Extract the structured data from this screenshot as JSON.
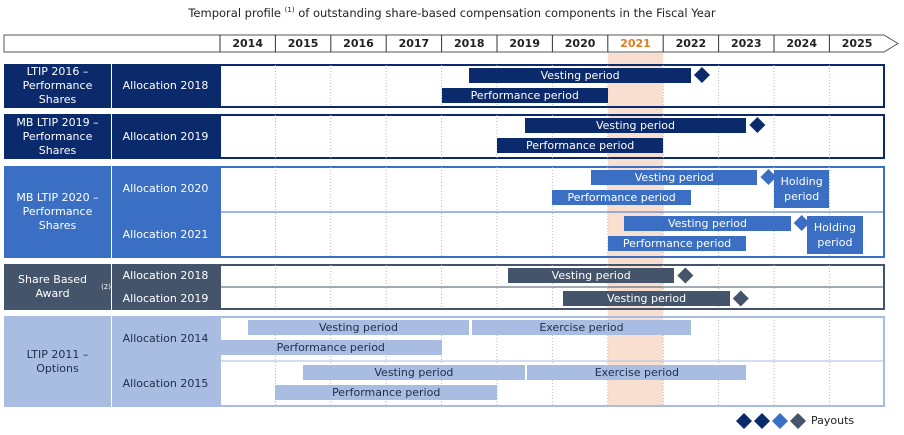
{
  "title": "Temporal profile",
  "title_note": "(1)",
  "title_rest": "of outstanding share-based compensation components in the Fiscal Year",
  "colors": {
    "navy": "#0b2a6b",
    "blue": "#3a6fc4",
    "slate": "#44546a",
    "pale": "#a9bde3",
    "highlight": "#f8dfcf"
  },
  "chart_data": {
    "type": "gantt",
    "title": "Temporal profile (1) of outstanding share-based compensation components in the Fiscal Year",
    "years": [
      "2014",
      "2015",
      "2016",
      "2017",
      "2018",
      "2019",
      "2020",
      "2021",
      "2022",
      "2023",
      "2024",
      "2025"
    ],
    "highlight_year": "2021",
    "legend": {
      "label": "Payouts",
      "position": "bottom-right"
    },
    "groups": [
      {
        "name": "LTIP 2016 – Performance Shares",
        "color": "navy",
        "rows": [
          {
            "name": "Allocation 2018",
            "bars": [
              {
                "label": "Vesting period",
                "start": 2018.5,
                "end": 2022.5
              },
              {
                "label": "Performance period",
                "start": 2018.0,
                "end": 2021.0
              }
            ],
            "payout": 2022.7
          }
        ]
      },
      {
        "name": "MB LTIP 2019 – Performance Shares",
        "color": "navy",
        "rows": [
          {
            "name": "Allocation 2019",
            "bars": [
              {
                "label": "Vesting period",
                "start": 2019.5,
                "end": 2023.5
              },
              {
                "label": "Performance period",
                "start": 2019.0,
                "end": 2022.0
              }
            ],
            "payout": 2023.7
          }
        ]
      },
      {
        "name": "MB LTIP 2020 – Performance Shares",
        "color": "blue",
        "rows": [
          {
            "name": "Allocation 2020",
            "bars": [
              {
                "label": "Vesting period",
                "start": 2020.7,
                "end": 2023.7
              },
              {
                "label": "Performance period",
                "start": 2020.0,
                "end": 2022.5
              }
            ],
            "payout": 2023.9,
            "holding": {
              "label": "Holding period",
              "start": 2024.0,
              "end": 2025.0
            }
          },
          {
            "name": "Allocation 2021",
            "bars": [
              {
                "label": "Vesting period",
                "start": 2021.3,
                "end": 2024.3
              },
              {
                "label": "Performance period",
                "start": 2021.0,
                "end": 2023.5
              }
            ],
            "payout": 2024.5,
            "holding": {
              "label": "Holding period",
              "start": 2024.6,
              "end": 2025.6
            }
          }
        ]
      },
      {
        "name": "Share Based Award",
        "note": "(2)",
        "color": "slate",
        "rows": [
          {
            "name": "Allocation 2018",
            "bars": [
              {
                "label": "Vesting period",
                "start": 2019.2,
                "end": 2022.2
              }
            ],
            "payout": 2022.4
          },
          {
            "name": "Allocation 2019",
            "bars": [
              {
                "label": "Vesting period",
                "start": 2020.2,
                "end": 2023.2
              }
            ],
            "payout": 2023.4
          }
        ]
      },
      {
        "name": "LTIP 2011 – Options",
        "color": "pale",
        "rows": [
          {
            "name": "Allocation 2014",
            "bars": [
              {
                "label": "Vesting period",
                "start": 2014.5,
                "end": 2018.5
              },
              {
                "label": "Exercise period",
                "start": 2018.55,
                "end": 2022.5
              },
              {
                "label": "Performance period",
                "start": 2014.0,
                "end": 2018.0
              }
            ]
          },
          {
            "name": "Allocation 2015",
            "bars": [
              {
                "label": "Vesting period",
                "start": 2015.5,
                "end": 2019.5
              },
              {
                "label": "Exercise period",
                "start": 2019.55,
                "end": 2023.5
              },
              {
                "label": "Performance period",
                "start": 2015.0,
                "end": 2019.0
              }
            ]
          }
        ]
      }
    ]
  }
}
